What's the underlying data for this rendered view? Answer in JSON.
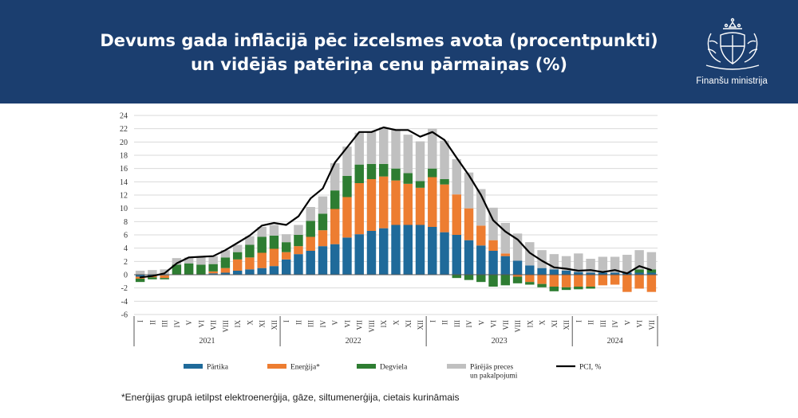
{
  "header": {
    "title_line1": "Devums gada inflācijā pēc izcelsmes avota (procentpunkti)",
    "title_line2": "un vidējās patēriņa cenu pārmaiņas (%)",
    "ministry": "Finanšu ministrija",
    "logo_icon": "latvia-coat-of-arms-icon",
    "background_color": "#1b3e6f"
  },
  "footnote": "*Enerģijas grupā ietilpst elektroenerģija, gāze, siltumenerģija, cietais kurināmais",
  "chart_data": {
    "type": "bar",
    "stacked": true,
    "ylim": [
      -6,
      24
    ],
    "yticks": [
      -6,
      -4,
      -2,
      0,
      2,
      4,
      6,
      8,
      10,
      12,
      14,
      16,
      18,
      20,
      22,
      24
    ],
    "grid": true,
    "legend_position": "bottom",
    "categories": [
      "I",
      "II",
      "III",
      "IV",
      "V",
      "VI",
      "VII",
      "VIII",
      "IX",
      "X",
      "XI",
      "XII",
      "I",
      "II",
      "III",
      "IV",
      "V",
      "VI",
      "VII",
      "VIII",
      "IX",
      "X",
      "XI",
      "XII",
      "I",
      "II",
      "III",
      "IV",
      "V",
      "VI",
      "VII",
      "VIII",
      "IX",
      "X",
      "XI",
      "XII",
      "I",
      "II",
      "III",
      "IV",
      "V",
      "VI",
      "VII"
    ],
    "groups": [
      {
        "label": "2021",
        "start": 0,
        "end": 11
      },
      {
        "label": "2022",
        "start": 12,
        "end": 23
      },
      {
        "label": "2023",
        "start": 24,
        "end": 35
      },
      {
        "label": "2024",
        "start": 36,
        "end": 42
      }
    ],
    "series": [
      {
        "name": "Pārtika",
        "color": "#1f6a9a",
        "values": [
          -0.3,
          -0.2,
          -0.1,
          0,
          0,
          0,
          0.2,
          0.3,
          0.6,
          0.8,
          1.0,
          1.3,
          2.3,
          3.1,
          3.6,
          4.3,
          4.6,
          5.6,
          6.1,
          6.6,
          7.0,
          7.5,
          7.5,
          7.5,
          7.2,
          6.4,
          6.0,
          5.2,
          4.4,
          3.6,
          2.8,
          2.1,
          1.4,
          1.0,
          0.8,
          0.6,
          0.4,
          0.3,
          0.3,
          0.3,
          0.3,
          0.3,
          0.3
        ]
      },
      {
        "name": "Enerģija*",
        "color": "#ed7d31",
        "values": [
          -0.3,
          -0.2,
          -0.4,
          0,
          0,
          0,
          0.3,
          0.7,
          1.7,
          1.8,
          2.3,
          2.6,
          1.1,
          1.2,
          2.1,
          2.4,
          5.3,
          6.1,
          7.7,
          7.8,
          7.8,
          6.7,
          6.2,
          5.6,
          7.5,
          7.2,
          6.1,
          4.8,
          3.0,
          1.6,
          0.4,
          -0.3,
          -1.1,
          -1.4,
          -1.8,
          -1.9,
          -1.8,
          -1.8,
          -1.6,
          -1.5,
          -2.6,
          -2.1,
          -2.6
        ]
      },
      {
        "name": "Degviela",
        "color": "#2e7d32",
        "values": [
          -0.5,
          -0.3,
          -0.2,
          1.5,
          1.7,
          1.5,
          1.1,
          1.6,
          1.1,
          1.9,
          2.4,
          2.0,
          1.5,
          1.7,
          2.4,
          2.5,
          2.8,
          3.2,
          2.8,
          2.3,
          1.9,
          1.8,
          1.6,
          1.0,
          1.3,
          0.8,
          -0.5,
          -0.8,
          -1.1,
          -1.8,
          -1.6,
          -1.0,
          -0.4,
          -0.5,
          -0.7,
          -0.4,
          -0.4,
          -0.3,
          0,
          0,
          0,
          0.5,
          0.5
        ]
      },
      {
        "name": "Pārējās preces un pakalpojumi",
        "label_lines": [
          "Pārējās preces",
          "un pakalpojumi"
        ],
        "color": "#c0c0c0",
        "values": [
          0.6,
          0.7,
          0.8,
          1.0,
          0.9,
          1.2,
          1.2,
          1.1,
          1.1,
          1.3,
          1.5,
          1.6,
          1.2,
          1.5,
          2.1,
          2.6,
          4.1,
          4.4,
          4.8,
          4.9,
          5.5,
          5.8,
          5.8,
          6.0,
          6.0,
          5.8,
          5.3,
          5.4,
          5.5,
          4.9,
          4.6,
          4.1,
          3.5,
          2.7,
          2.3,
          2.2,
          2.8,
          2.1,
          2.4,
          2.4,
          2.7,
          2.9,
          2.6
        ]
      },
      {
        "name": "PCI, %",
        "color": "#000000",
        "type": "line",
        "values": [
          -0.4,
          -0.2,
          0.2,
          1.7,
          2.6,
          2.7,
          2.8,
          3.7,
          4.8,
          5.9,
          7.4,
          7.8,
          7.5,
          8.8,
          11.5,
          13.0,
          16.9,
          19.2,
          21.5,
          21.5,
          22.2,
          21.8,
          21.8,
          20.8,
          21.5,
          20.3,
          17.6,
          15.0,
          12.0,
          8.2,
          6.5,
          5.3,
          3.3,
          2.1,
          1.1,
          0.9,
          0.6,
          0.7,
          0.4,
          0.7,
          0.2,
          1.3,
          0.7
        ]
      }
    ]
  }
}
